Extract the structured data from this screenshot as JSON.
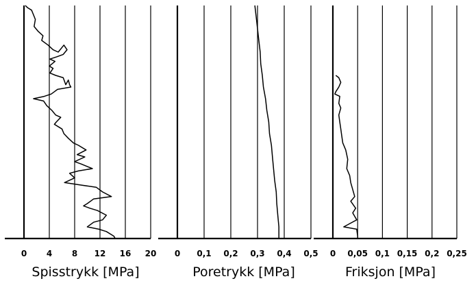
{
  "chart_data": [
    {
      "type": "line",
      "xlabel": "Spisstrykk [MPa]",
      "xlim": [
        0,
        20
      ],
      "ticks": [
        0,
        4,
        8,
        12,
        16,
        20
      ],
      "tick_labels": [
        "0",
        "4",
        "8",
        "12",
        "16",
        "20"
      ],
      "ylim": [
        0,
        1
      ],
      "y_reversed": true,
      "grid": "vertical",
      "points": [
        [
          0.2,
          0.0
        ],
        [
          0.6,
          0.01
        ],
        [
          1.2,
          0.02
        ],
        [
          1.5,
          0.04
        ],
        [
          1.8,
          0.06
        ],
        [
          1.6,
          0.09
        ],
        [
          2.2,
          0.11
        ],
        [
          3.0,
          0.13
        ],
        [
          2.8,
          0.15
        ],
        [
          3.8,
          0.17
        ],
        [
          4.6,
          0.19
        ],
        [
          5.4,
          0.2
        ],
        [
          6.3,
          0.17
        ],
        [
          6.8,
          0.19
        ],
        [
          6.2,
          0.21
        ],
        [
          5.2,
          0.22
        ],
        [
          4.1,
          0.23
        ],
        [
          4.9,
          0.24
        ],
        [
          4.0,
          0.26
        ],
        [
          4.6,
          0.27
        ],
        [
          4.1,
          0.29
        ],
        [
          5.0,
          0.3
        ],
        [
          6.2,
          0.31
        ],
        [
          6.6,
          0.34
        ],
        [
          7.0,
          0.32
        ],
        [
          7.2,
          0.34
        ],
        [
          7.4,
          0.35
        ],
        [
          5.3,
          0.36
        ],
        [
          4.8,
          0.37
        ],
        [
          4.3,
          0.38
        ],
        [
          3.2,
          0.39
        ],
        [
          1.5,
          0.4
        ],
        [
          3.1,
          0.41
        ],
        [
          3.6,
          0.43
        ],
        [
          4.4,
          0.45
        ],
        [
          5.0,
          0.47
        ],
        [
          5.8,
          0.48
        ],
        [
          5.1,
          0.5
        ],
        [
          4.8,
          0.51
        ],
        [
          5.4,
          0.52
        ],
        [
          6.0,
          0.53
        ],
        [
          6.3,
          0.55
        ],
        [
          7.0,
          0.57
        ],
        [
          7.8,
          0.59
        ],
        [
          8.6,
          0.6
        ],
        [
          9.8,
          0.62
        ],
        [
          8.4,
          0.64
        ],
        [
          9.6,
          0.65
        ],
        [
          8.0,
          0.67
        ],
        [
          9.0,
          0.68
        ],
        [
          10.8,
          0.7
        ],
        [
          8.6,
          0.71
        ],
        [
          7.2,
          0.72
        ],
        [
          8.0,
          0.74
        ],
        [
          6.4,
          0.76
        ],
        [
          8.8,
          0.77
        ],
        [
          11.4,
          0.78
        ],
        [
          12.4,
          0.8
        ],
        [
          13.8,
          0.82
        ],
        [
          11.0,
          0.83
        ],
        [
          10.0,
          0.85
        ],
        [
          9.4,
          0.86
        ],
        [
          10.4,
          0.87
        ],
        [
          11.6,
          0.88
        ],
        [
          13.0,
          0.9
        ],
        [
          12.4,
          0.92
        ],
        [
          11.0,
          0.93
        ],
        [
          10.0,
          0.95
        ],
        [
          11.8,
          0.96
        ],
        [
          13.0,
          0.97
        ],
        [
          14.2,
          0.99
        ],
        [
          14.4,
          1.0
        ]
      ]
    },
    {
      "type": "line",
      "xlabel": "Poretrykk [MPa]",
      "xlim": [
        0,
        0.5
      ],
      "ticks": [
        0,
        0.1,
        0.2,
        0.3,
        0.4,
        0.5
      ],
      "tick_labels": [
        "0",
        "0,1",
        "0,2",
        "0,3",
        "0,4",
        "0,5"
      ],
      "ylim": [
        0,
        1
      ],
      "y_reversed": true,
      "grid": "vertical",
      "points": [
        [
          0.29,
          0.0
        ],
        [
          0.295,
          0.05
        ],
        [
          0.3,
          0.1
        ],
        [
          0.305,
          0.15
        ],
        [
          0.31,
          0.2
        ],
        [
          0.312,
          0.25
        ],
        [
          0.318,
          0.3
        ],
        [
          0.322,
          0.35
        ],
        [
          0.33,
          0.4
        ],
        [
          0.335,
          0.45
        ],
        [
          0.342,
          0.5
        ],
        [
          0.345,
          0.55
        ],
        [
          0.352,
          0.6
        ],
        [
          0.356,
          0.65
        ],
        [
          0.36,
          0.7
        ],
        [
          0.364,
          0.75
        ],
        [
          0.37,
          0.8
        ],
        [
          0.372,
          0.85
        ],
        [
          0.376,
          0.9
        ],
        [
          0.38,
          0.95
        ],
        [
          0.38,
          1.0
        ]
      ]
    },
    {
      "type": "line",
      "xlabel": "Friksjon [MPa]",
      "xlim": [
        0,
        0.25
      ],
      "ticks": [
        0,
        0.05,
        0.1,
        0.15,
        0.2,
        0.25
      ],
      "tick_labels": [
        "0",
        "0,05",
        "0,1",
        "0,15",
        "0,2",
        "0,25"
      ],
      "ylim": [
        0,
        1
      ],
      "y_reversed": true,
      "grid": "vertical",
      "points": [
        [
          0.006,
          0.3
        ],
        [
          0.012,
          0.31
        ],
        [
          0.016,
          0.33
        ],
        [
          0.012,
          0.35
        ],
        [
          0.006,
          0.37
        ],
        [
          0.004,
          0.38
        ],
        [
          0.014,
          0.39
        ],
        [
          0.012,
          0.42
        ],
        [
          0.016,
          0.44
        ],
        [
          0.012,
          0.47
        ],
        [
          0.014,
          0.5
        ],
        [
          0.016,
          0.53
        ],
        [
          0.018,
          0.56
        ],
        [
          0.02,
          0.59
        ],
        [
          0.026,
          0.62
        ],
        [
          0.03,
          0.66
        ],
        [
          0.028,
          0.7
        ],
        [
          0.034,
          0.73
        ],
        [
          0.036,
          0.76
        ],
        [
          0.04,
          0.79
        ],
        [
          0.044,
          0.82
        ],
        [
          0.036,
          0.84
        ],
        [
          0.046,
          0.87
        ],
        [
          0.04,
          0.89
        ],
        [
          0.048,
          0.92
        ],
        [
          0.022,
          0.95
        ],
        [
          0.048,
          0.96
        ],
        [
          0.05,
          0.99
        ],
        [
          0.05,
          1.0
        ]
      ]
    }
  ]
}
